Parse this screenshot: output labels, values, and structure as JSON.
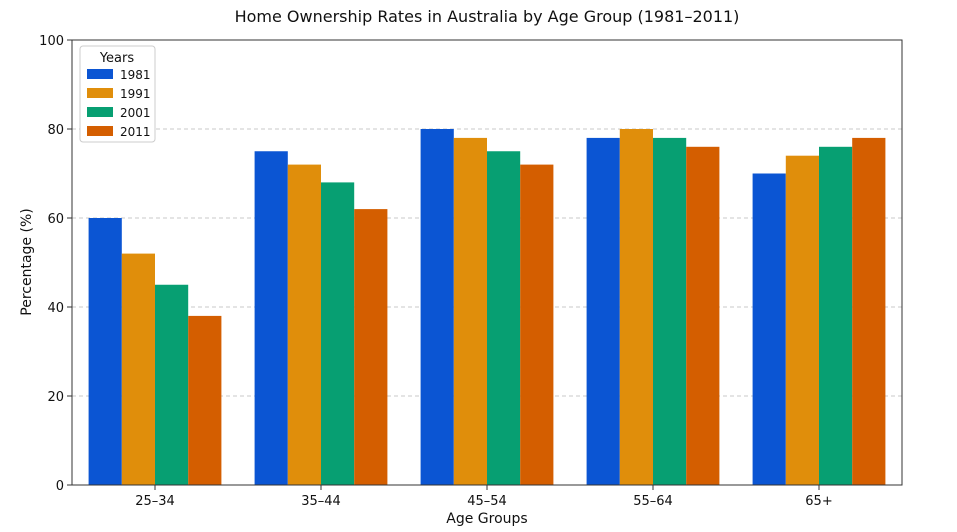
{
  "chart_data": {
    "type": "bar",
    "title": "Home Ownership Rates in Australia by Age Group (1981–2011)",
    "xlabel": "Age Groups",
    "ylabel": "Percentage (%)",
    "ylim": [
      0,
      100
    ],
    "yticks": [
      0,
      20,
      40,
      60,
      80,
      100
    ],
    "grid": true,
    "legend": {
      "title": "Years",
      "placement": "top-left"
    },
    "categories": [
      "25–34",
      "35–44",
      "45–54",
      "55–64",
      "65+"
    ],
    "series": [
      {
        "name": "1981",
        "color": "#0b55d3",
        "values": [
          60,
          75,
          80,
          78,
          70
        ]
      },
      {
        "name": "1991",
        "color": "#e08e0b",
        "values": [
          52,
          72,
          78,
          80,
          74
        ]
      },
      {
        "name": "2001",
        "color": "#079f72",
        "values": [
          45,
          68,
          75,
          78,
          76
        ]
      },
      {
        "name": "2011",
        "color": "#d45e00",
        "values": [
          38,
          62,
          72,
          76,
          78
        ]
      }
    ]
  }
}
